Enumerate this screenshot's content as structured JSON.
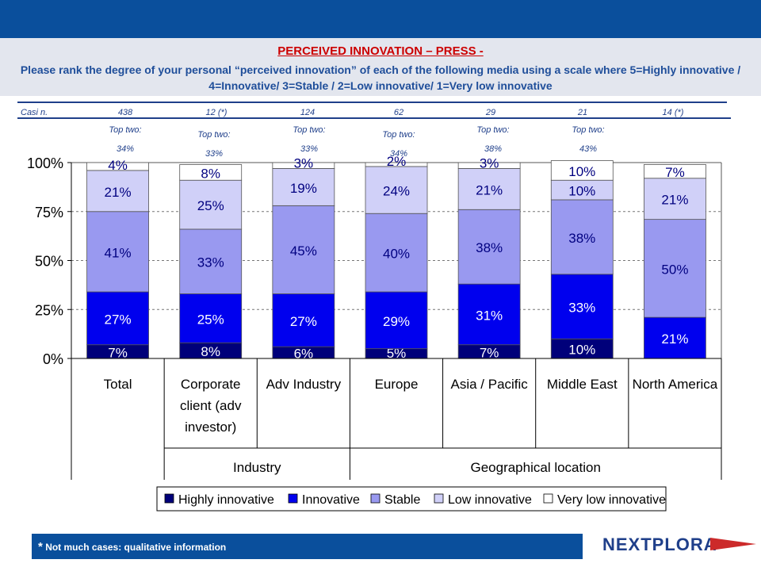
{
  "header": {
    "title": "PERCEIVED INNOVATION – PRESS -",
    "subtitle": "Please rank the degree of your personal “perceived innovation” of each of the following media using a scale where  5=Highly innovative / 4=Innovative/ 3=Stable / 2=Low innovative/ 1=Very low innovative"
  },
  "cases": {
    "label": "Casi n.",
    "values": [
      "438",
      "12 (*)",
      "124",
      "62",
      "29",
      "21",
      "14 (*)"
    ]
  },
  "top_two": {
    "label": "Top two:",
    "values": [
      "34%",
      "33%",
      "33%",
      "34%",
      "38%",
      "43%",
      ""
    ]
  },
  "chart_data": {
    "type": "bar",
    "stacked": true,
    "categories": [
      "Total",
      "Corporate client (adv investor)",
      "Adv Industry",
      "Europe",
      "Asia / Pacific",
      "Middle East",
      "North America"
    ],
    "category_lines": [
      [
        "Total"
      ],
      [
        "Corporate",
        "client (adv",
        "investor)"
      ],
      [
        "Adv Industry"
      ],
      [
        "Europe"
      ],
      [
        "Asia / Pacific"
      ],
      [
        "Middle East"
      ],
      [
        "North America"
      ]
    ],
    "group_labels": [
      {
        "label": "Industry",
        "from": 1,
        "to": 2
      },
      {
        "label": "Geographical location",
        "from": 3,
        "to": 6
      }
    ],
    "series": [
      {
        "name": "Highly innovative",
        "values": [
          7,
          8,
          6,
          5,
          7,
          10,
          0
        ],
        "color": "#00007a"
      },
      {
        "name": "Innovative",
        "values": [
          27,
          25,
          27,
          29,
          31,
          33,
          21
        ],
        "color": "#0000ee"
      },
      {
        "name": "Stable",
        "values": [
          41,
          33,
          45,
          40,
          38,
          38,
          50
        ],
        "color": "#9999f0"
      },
      {
        "name": "Low innovative",
        "values": [
          21,
          25,
          19,
          24,
          21,
          10,
          21
        ],
        "color": "#d0d0f8"
      },
      {
        "name": "Very low innovative",
        "values": [
          4,
          8,
          3,
          2,
          3,
          10,
          7
        ],
        "color": "#ffffff"
      }
    ],
    "yticks": [
      "0%",
      "25%",
      "50%",
      "75%",
      "100%"
    ],
    "ylim": [
      0,
      100
    ],
    "grid": true,
    "legend": "bottom"
  },
  "footer": {
    "star": "*",
    "note": "Not much cases: qualitative information"
  },
  "logo": {
    "text": "NEXTPLORA",
    "accent": "#cc2a2a"
  }
}
